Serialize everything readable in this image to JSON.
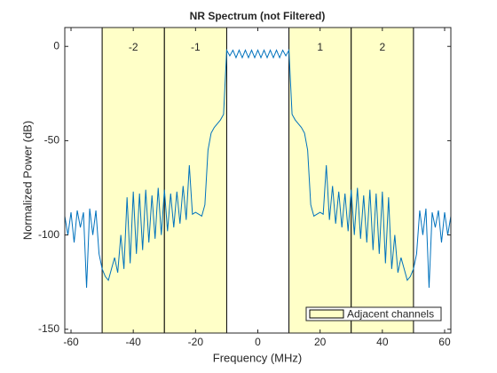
{
  "chart_data": {
    "type": "line",
    "title": "NR Spectrum (not Filtered)",
    "xlabel": "Frequency (MHz)",
    "ylabel": "Normalized Power (dB)",
    "x": [
      -62,
      -61,
      -60,
      -59,
      -58,
      -57,
      -56,
      -55,
      -54,
      -53,
      -52,
      -51,
      -50,
      -49,
      -48,
      -47,
      -46,
      -45,
      -44,
      -43,
      -42,
      -41,
      -40,
      -39,
      -38,
      -37,
      -36,
      -35,
      -34,
      -33,
      -32,
      -31,
      -30,
      -29,
      -28,
      -27,
      -26,
      -25,
      -24,
      -23,
      -22,
      -21,
      -20,
      -19,
      -18,
      -17,
      -16,
      -15,
      -14,
      -13,
      -12,
      -11,
      -10,
      -9,
      -8,
      -7,
      -6,
      -5,
      -4,
      -3,
      -2,
      -1,
      0,
      1,
      2,
      3,
      4,
      5,
      6,
      7,
      8,
      9,
      10,
      11,
      12,
      13,
      14,
      15,
      16,
      17,
      18,
      19,
      20,
      21,
      22,
      23,
      24,
      25,
      26,
      27,
      28,
      29,
      30,
      31,
      32,
      33,
      34,
      35,
      36,
      37,
      38,
      39,
      40,
      41,
      42,
      43,
      44,
      45,
      46,
      47,
      48,
      49,
      50,
      51,
      52,
      53,
      54,
      55,
      56,
      57,
      58,
      59,
      60,
      61,
      62
    ],
    "series": [
      {
        "color": "#0072bd",
        "values": [
          -90,
          -100,
          -88,
          -104,
          -87,
          -96,
          -88,
          -128,
          -86,
          -100,
          -87,
          -110,
          -118,
          -122,
          -124,
          -118,
          -112,
          -120,
          -100,
          -118,
          -80,
          -115,
          -77,
          -110,
          -78,
          -108,
          -76,
          -104,
          -79,
          -102,
          -75,
          -100,
          -76,
          -98,
          -78,
          -96,
          -77,
          -94,
          -74,
          -92,
          -63,
          -89,
          -88,
          -89,
          -90,
          -84,
          -55,
          -46,
          -43,
          -41,
          -39,
          -36,
          -2,
          -5,
          -2,
          -6,
          -2,
          -6,
          -2,
          -6,
          -2,
          -6,
          -2,
          -6,
          -2,
          -6,
          -2,
          -6,
          -2,
          -6,
          -2,
          -5,
          -2,
          -36,
          -39,
          -41,
          -43,
          -46,
          -55,
          -84,
          -90,
          -89,
          -88,
          -89,
          -63,
          -92,
          -74,
          -94,
          -77,
          -96,
          -78,
          -98,
          -76,
          -100,
          -75,
          -102,
          -79,
          -104,
          -76,
          -108,
          -78,
          -110,
          -77,
          -115,
          -80,
          -118,
          -100,
          -120,
          -112,
          -118,
          -124,
          -122,
          -118,
          -110,
          -87,
          -100,
          -86,
          -128,
          -88,
          -96,
          -87,
          -104,
          -88,
          -100,
          -90
        ]
      }
    ],
    "channels": [
      {
        "label": "-2",
        "xlim": [
          -50,
          -30
        ]
      },
      {
        "label": "-1",
        "xlim": [
          -30,
          -10
        ]
      },
      {
        "label": "1",
        "xlim": [
          10,
          30
        ]
      },
      {
        "label": "2",
        "xlim": [
          30,
          50
        ]
      }
    ],
    "channel_color": "#ffffc8",
    "legend": {
      "label": "Adjacent channels",
      "position": "southeast"
    },
    "xlim": [
      -62,
      62
    ],
    "ylim": [
      -152,
      10
    ],
    "xticks": [
      -60,
      -40,
      -20,
      0,
      20,
      40,
      60
    ],
    "yticks": [
      -150,
      -100,
      -50,
      0
    ]
  }
}
